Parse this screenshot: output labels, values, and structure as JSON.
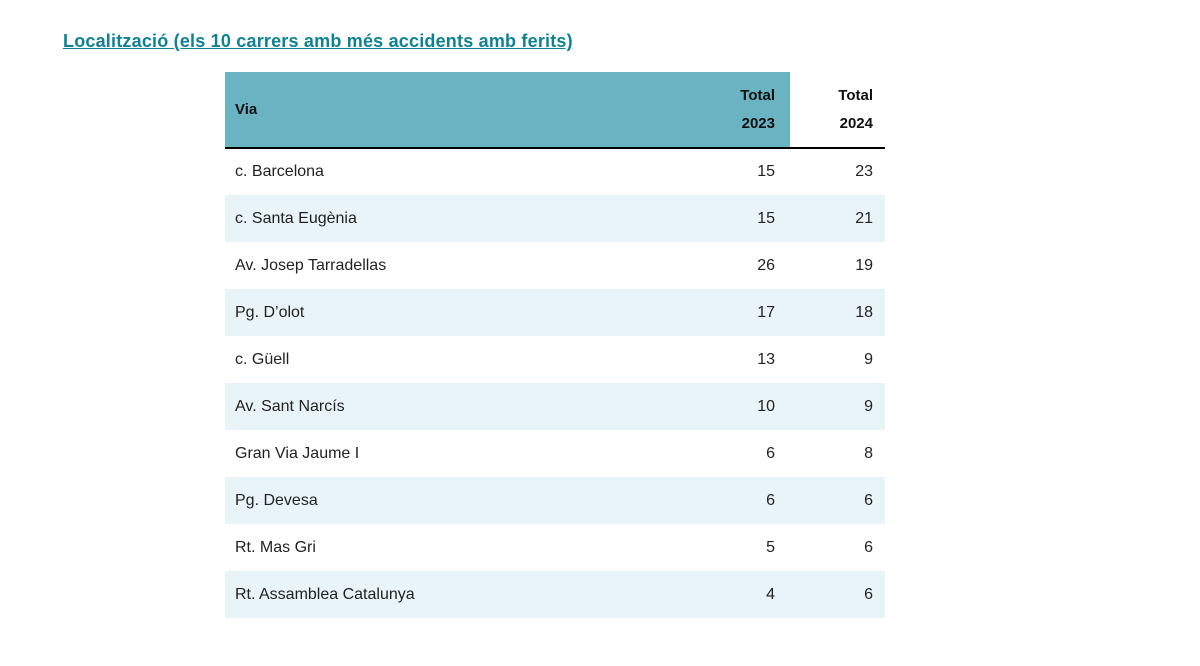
{
  "page": {
    "title": "Localització (els 10 carrers amb més accidents amb ferits)"
  },
  "colors": {
    "title_color": "#0d8295",
    "header_bg": "#69b3c3",
    "row_alt_bg": "#e8f4f8",
    "header_border": "#000000"
  },
  "table": {
    "header": {
      "via": "Via",
      "total_2023": "Total\n2023",
      "total_2024": "Total\n2024"
    },
    "rows": [
      {
        "via": "c. Barcelona",
        "t2023": "15",
        "t2024": "23"
      },
      {
        "via": "c. Santa Eugènia",
        "t2023": "15",
        "t2024": "21"
      },
      {
        "via": "Av. Josep Tarradellas",
        "t2023": "26",
        "t2024": "19"
      },
      {
        "via": "Pg. D’olot",
        "t2023": "17",
        "t2024": "18"
      },
      {
        "via": "c. Güell",
        "t2023": "13",
        "t2024": "9"
      },
      {
        "via": "Av. Sant Narcís",
        "t2023": "10",
        "t2024": "9"
      },
      {
        "via": "Gran Via Jaume I",
        "t2023": "6",
        "t2024": "8"
      },
      {
        "via": "Pg. Devesa",
        "t2023": "6",
        "t2024": "6"
      },
      {
        "via": "Rt. Mas Gri",
        "t2023": "5",
        "t2024": "6"
      },
      {
        "via": "Rt. Assamblea Catalunya",
        "t2023": "4",
        "t2024": "6"
      }
    ]
  },
  "chart_data": {
    "type": "table",
    "title": "Localització (els 10 carrers amb més accidents amb ferits)",
    "columns": [
      "Via",
      "Total 2023",
      "Total 2024"
    ],
    "rows": [
      [
        "c. Barcelona",
        15,
        23
      ],
      [
        "c. Santa Eugènia",
        15,
        21
      ],
      [
        "Av. Josep Tarradellas",
        26,
        19
      ],
      [
        "Pg. D’olot",
        17,
        18
      ],
      [
        "c. Güell",
        13,
        9
      ],
      [
        "Av. Sant Narcís",
        10,
        9
      ],
      [
        "Gran Via Jaume I",
        6,
        8
      ],
      [
        "Pg. Devesa",
        6,
        6
      ],
      [
        "Rt. Mas Gri",
        5,
        6
      ],
      [
        "Rt. Assamblea Catalunya",
        4,
        6
      ]
    ]
  }
}
